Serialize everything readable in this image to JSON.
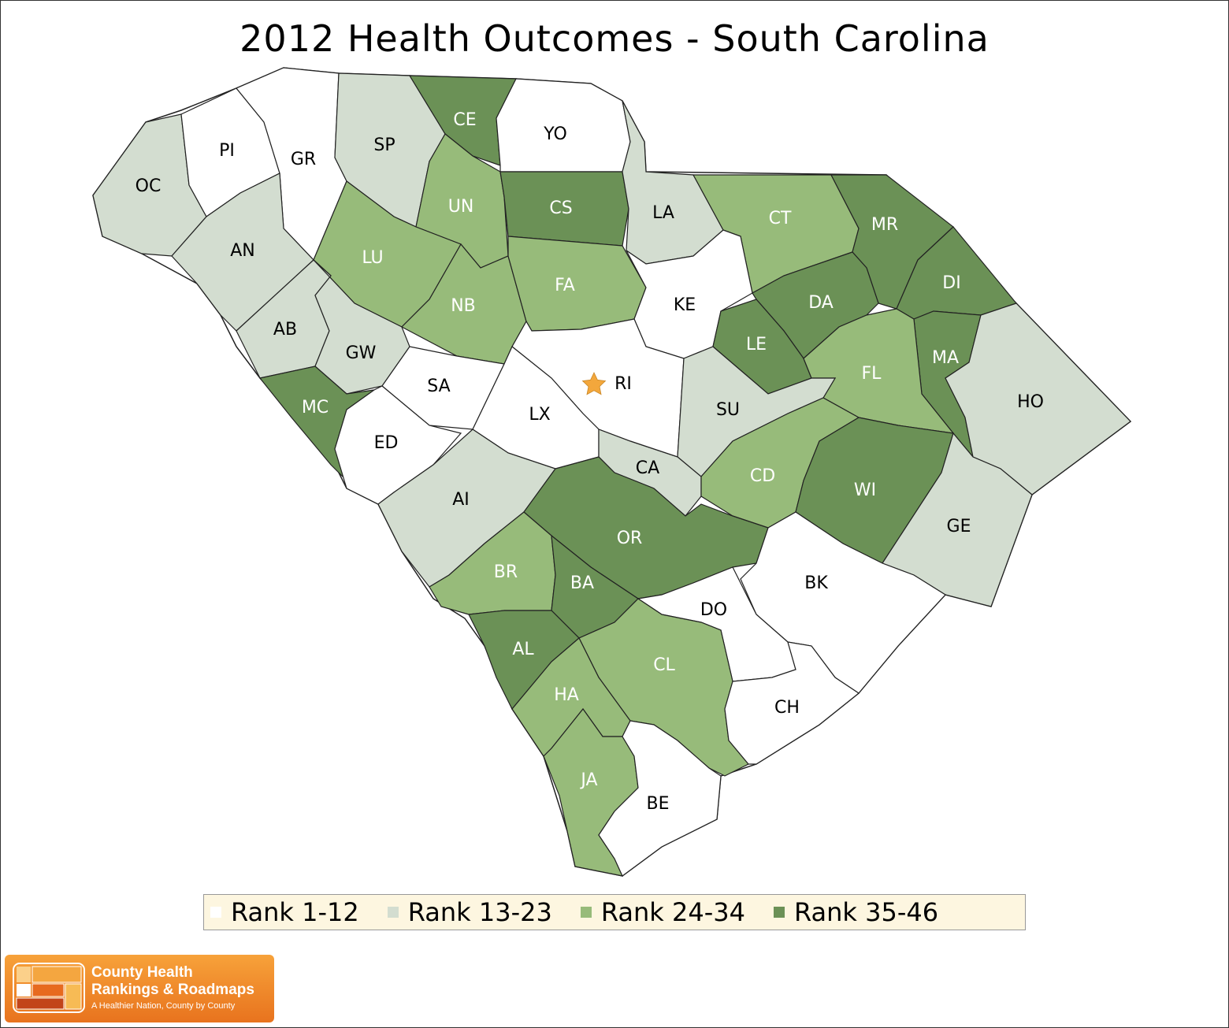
{
  "title": "2012 Health Outcomes - South Carolina",
  "colors": {
    "rank_1_12": "#ffffff",
    "rank_13_23": "#d3ddd0",
    "rank_24_34": "#97bb7a",
    "rank_35_46": "#6b9156",
    "star": "#f3a73c"
  },
  "legend": [
    {
      "label": "Rank 1-12",
      "color": "#ffffff"
    },
    {
      "label": "Rank 13-23",
      "color": "#d3ddd0"
    },
    {
      "label": "Rank 24-34",
      "color": "#97bb7a"
    },
    {
      "label": "Rank 35-46",
      "color": "#6b9156"
    }
  ],
  "counties": [
    {
      "code": "OC",
      "rank_group": "13-23"
    },
    {
      "code": "PI",
      "rank_group": "1-12"
    },
    {
      "code": "GR",
      "rank_group": "1-12"
    },
    {
      "code": "SP",
      "rank_group": "13-23"
    },
    {
      "code": "CE",
      "rank_group": "35-46"
    },
    {
      "code": "YO",
      "rank_group": "1-12"
    },
    {
      "code": "UN",
      "rank_group": "24-34"
    },
    {
      "code": "CS",
      "rank_group": "35-46"
    },
    {
      "code": "LA",
      "rank_group": "13-23"
    },
    {
      "code": "CT",
      "rank_group": "24-34"
    },
    {
      "code": "MR",
      "rank_group": "35-46"
    },
    {
      "code": "AN",
      "rank_group": "13-23"
    },
    {
      "code": "LU",
      "rank_group": "24-34"
    },
    {
      "code": "NB",
      "rank_group": "24-34"
    },
    {
      "code": "FA",
      "rank_group": "24-34"
    },
    {
      "code": "KE",
      "rank_group": "1-12"
    },
    {
      "code": "DA",
      "rank_group": "35-46"
    },
    {
      "code": "DI",
      "rank_group": "35-46"
    },
    {
      "code": "AB",
      "rank_group": "13-23"
    },
    {
      "code": "GW",
      "rank_group": "13-23"
    },
    {
      "code": "LE",
      "rank_group": "35-46"
    },
    {
      "code": "MA",
      "rank_group": "35-46"
    },
    {
      "code": "FL",
      "rank_group": "24-34"
    },
    {
      "code": "SA",
      "rank_group": "1-12"
    },
    {
      "code": "RI",
      "rank_group": "1-12"
    },
    {
      "code": "HO",
      "rank_group": "13-23"
    },
    {
      "code": "MC",
      "rank_group": "35-46"
    },
    {
      "code": "LX",
      "rank_group": "1-12"
    },
    {
      "code": "SU",
      "rank_group": "13-23"
    },
    {
      "code": "ED",
      "rank_group": "1-12"
    },
    {
      "code": "CA",
      "rank_group": "13-23"
    },
    {
      "code": "CD",
      "rank_group": "24-34"
    },
    {
      "code": "WI",
      "rank_group": "35-46"
    },
    {
      "code": "AI",
      "rank_group": "13-23"
    },
    {
      "code": "GE",
      "rank_group": "13-23"
    },
    {
      "code": "OR",
      "rank_group": "35-46"
    },
    {
      "code": "BR",
      "rank_group": "24-34"
    },
    {
      "code": "BA",
      "rank_group": "35-46"
    },
    {
      "code": "BK",
      "rank_group": "1-12"
    },
    {
      "code": "DO",
      "rank_group": "1-12"
    },
    {
      "code": "AL",
      "rank_group": "35-46"
    },
    {
      "code": "CL",
      "rank_group": "24-34"
    },
    {
      "code": "HA",
      "rank_group": "24-34"
    },
    {
      "code": "CH",
      "rank_group": "1-12"
    },
    {
      "code": "JA",
      "rank_group": "24-34"
    },
    {
      "code": "BE",
      "rank_group": "1-12"
    }
  ],
  "capital_marker": "star-icon",
  "logo": {
    "line1": "County Health",
    "line2": "Rankings & Roadmaps",
    "tagline": "A Healthier Nation, County by County"
  }
}
